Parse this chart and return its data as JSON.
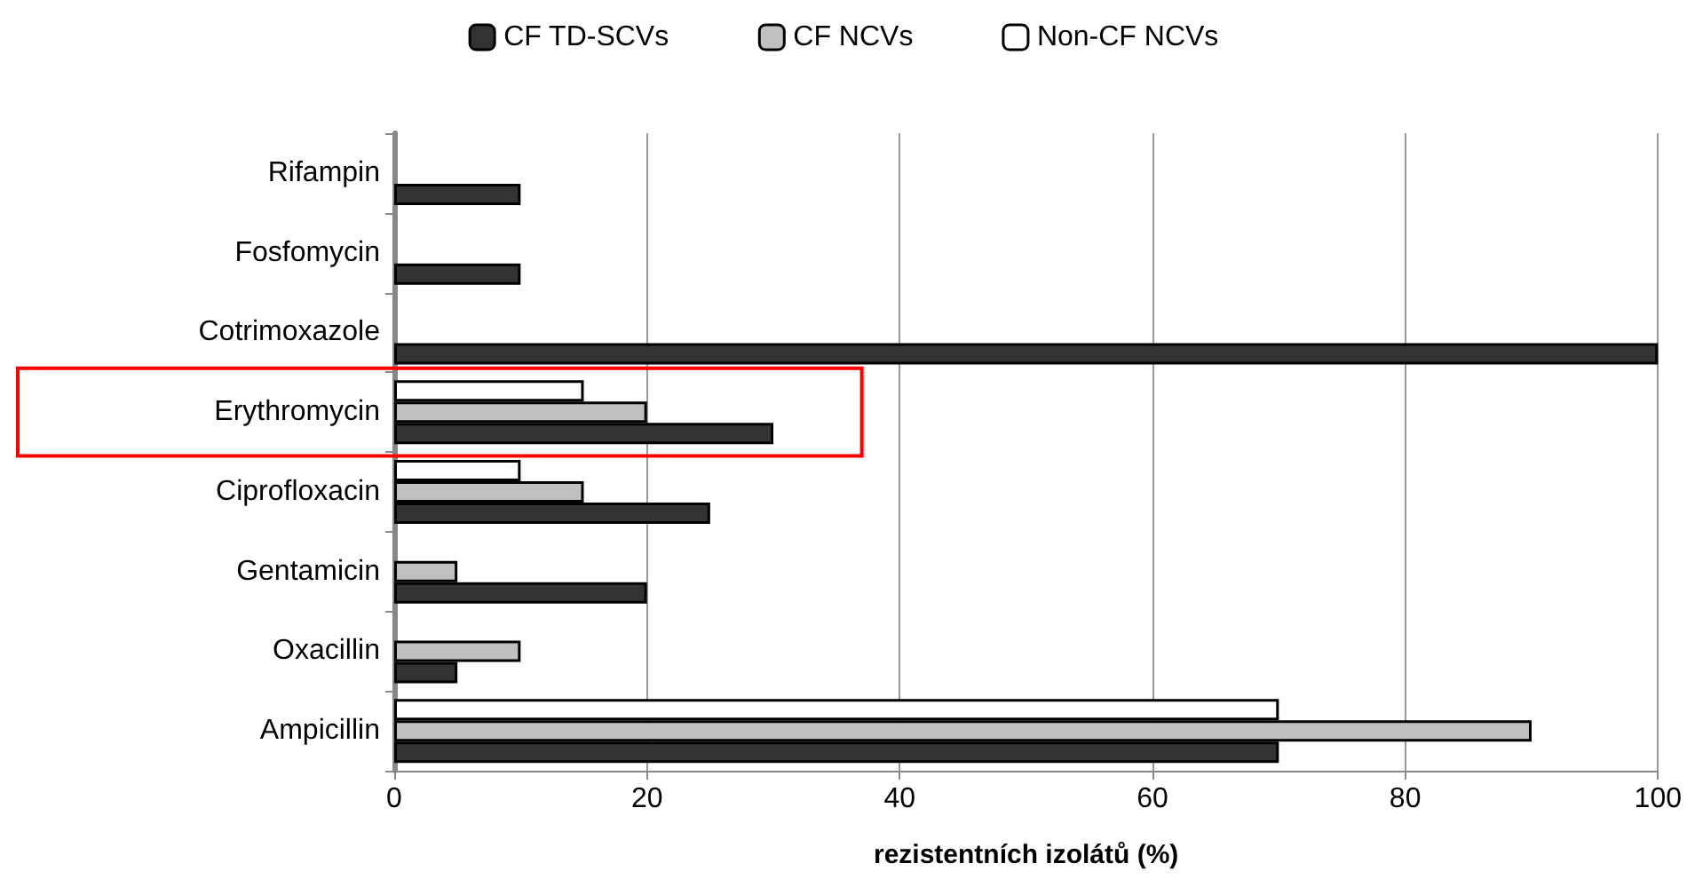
{
  "chart_data": {
    "type": "bar",
    "orientation": "horizontal",
    "xlabel": "rezistentních izolátů (%)",
    "categories": [
      "Rifampin",
      "Fosfomycin",
      "Cotrimoxazole",
      "Erythromycin",
      "Ciprofloxacin",
      "Gentamicin",
      "Oxacillin",
      "Ampicillin"
    ],
    "series": [
      {
        "name": "Non-CF NCVs",
        "color": "#ffffff",
        "values": [
          0,
          0,
          0,
          15,
          10,
          0,
          0,
          70
        ]
      },
      {
        "name": "CF NCVs",
        "color": "#c0c0c0",
        "values": [
          0,
          0,
          0,
          20,
          15,
          5,
          10,
          90
        ]
      },
      {
        "name": "CF TD-SCVs",
        "color": "#333333",
        "values": [
          10,
          10,
          100,
          30,
          25,
          20,
          5,
          70
        ]
      }
    ],
    "xlim": [
      0,
      100
    ],
    "xticks": [
      0,
      20,
      40,
      60,
      80,
      100
    ],
    "grid": "x",
    "legend": "top"
  }
}
